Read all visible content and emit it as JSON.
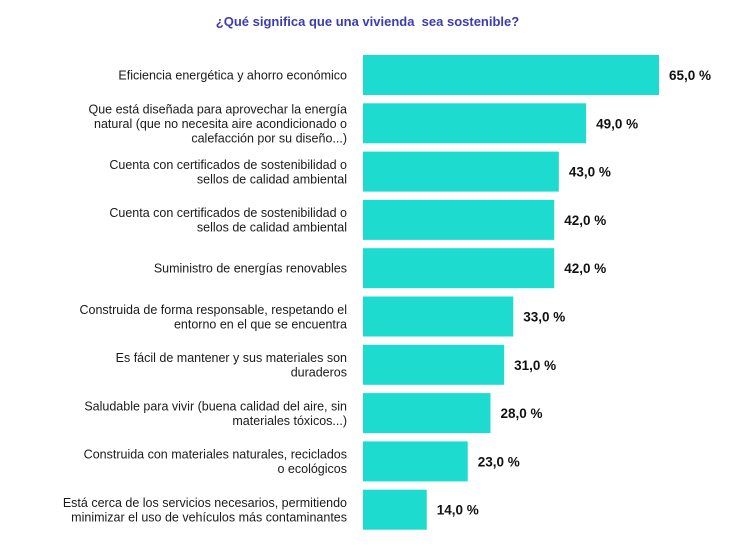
{
  "chart_data": {
    "type": "bar",
    "orientation": "horizontal",
    "title": "¿Qué significa que una vivienda  sea sostenible?",
    "xlabel": "",
    "ylabel": "",
    "xlim": [
      0,
      65
    ],
    "grid": false,
    "bar_color": "#1ddccf",
    "title_color": "#3b3bb3",
    "value_suffix": " %",
    "categories": [
      [
        "Eficiencia energética y ahorro económico"
      ],
      [
        "Que está diseñada para aprovechar la energía",
        "natural (que no necesita aire acondicionado o",
        "calefacción por su diseño...)"
      ],
      [
        "Cuenta con certificados de sostenibilidad o",
        "sellos de calidad ambiental"
      ],
      [
        "Cuenta con certificados de sostenibilidad o",
        "sellos de calidad ambiental"
      ],
      [
        "Suministro de energías renovables"
      ],
      [
        "Construida de forma responsable, respetando el",
        "entorno en el que se encuentra"
      ],
      [
        "Es fácil de mantener y sus materiales son",
        "duraderos"
      ],
      [
        "Saludable para vivir (buena calidad del aire, sin",
        "materiales tóxicos...)"
      ],
      [
        "Construida con materiales naturales, reciclados",
        "o ecológicos"
      ],
      [
        "Está cerca de los servicios necesarios, permitiendo",
        "minimizar el uso de vehículos más contaminantes"
      ]
    ],
    "values": [
      65.0,
      49.0,
      43.0,
      42.0,
      42.0,
      33.0,
      31.0,
      28.0,
      23.0,
      14.0
    ],
    "value_labels": [
      "65,0 %",
      "49,0 %",
      "43,0 %",
      "42,0 %",
      "42,0 %",
      "33,0 %",
      "31,0 %",
      "28,0 %",
      "23,0 %",
      "14,0 %"
    ]
  }
}
